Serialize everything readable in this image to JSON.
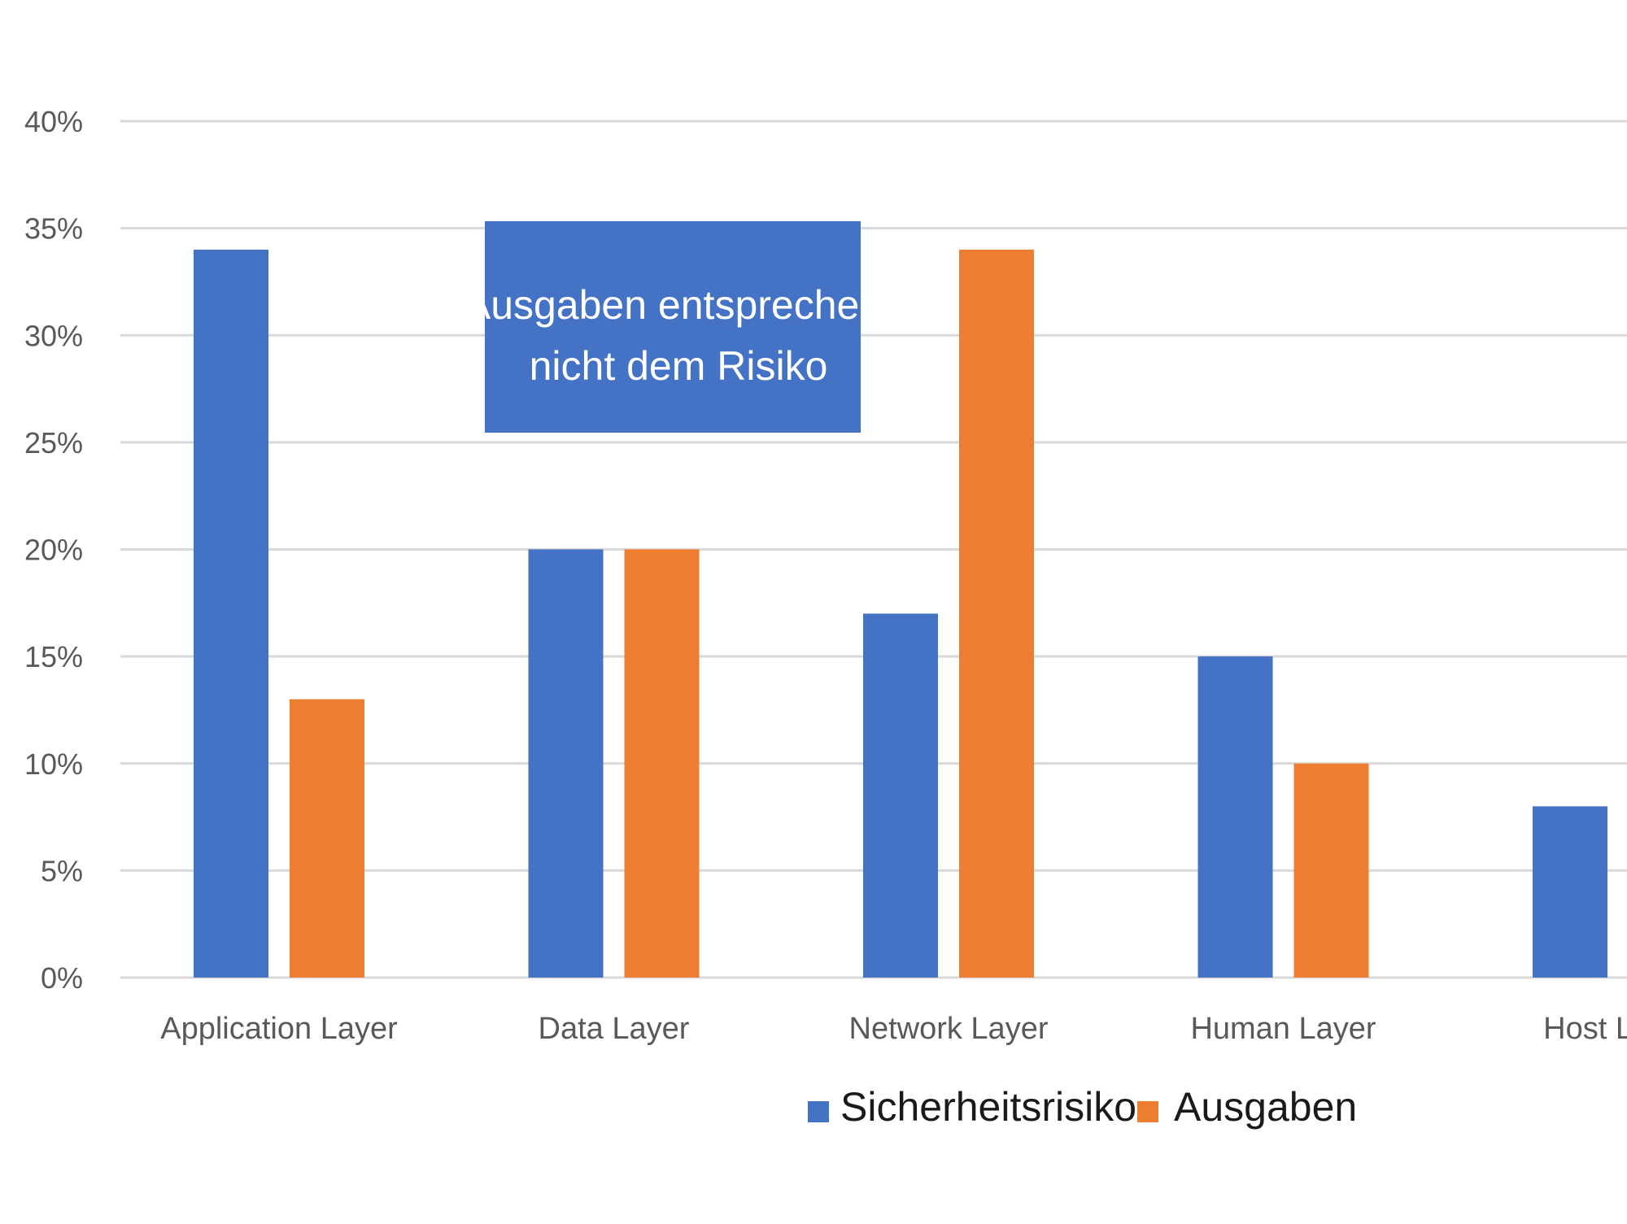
{
  "chart_data": {
    "type": "bar",
    "title": "",
    "xlabel": "",
    "ylabel": "",
    "categories": [
      "Application Layer",
      "Data Layer",
      "Network Layer",
      "Human Layer",
      "Host Layer"
    ],
    "series": [
      {
        "name": "Sicherheitsrisiko",
        "color": "#4472c4",
        "values": [
          34,
          20,
          17,
          15,
          8
        ]
      },
      {
        "name": "Ausgaben",
        "color": "#ed7d31",
        "values": [
          13,
          20,
          34,
          10,
          null
        ]
      }
    ],
    "ylim": [
      0,
      40
    ],
    "y_ticks": [
      "0%",
      "5%",
      "10%",
      "15%",
      "20%",
      "25%",
      "30%",
      "35%",
      "40%"
    ],
    "grid": true,
    "legend_position": "bottom",
    "annotation": {
      "lines": [
        "Ausgaben entsprechen",
        "nicht dem Risiko"
      ],
      "background_color": "#4472c4"
    }
  }
}
